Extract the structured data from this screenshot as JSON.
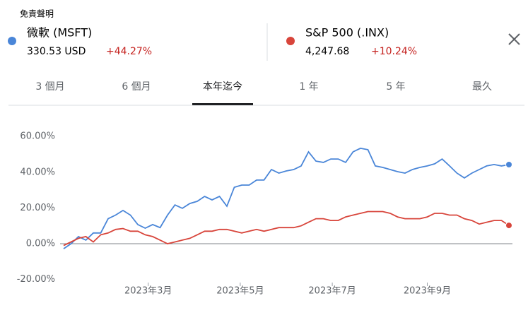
{
  "header": {
    "disclaimer": "免責聲明",
    "quotes": [
      {
        "name": "微軟 (MSFT)",
        "price": "330.53 USD",
        "change": "+44.27%"
      },
      {
        "name": "S&P 500 (.INX)",
        "price": "4,247.68",
        "change": "+10.24%"
      }
    ]
  },
  "tabs": [
    "3 個月",
    "6 個月",
    "本年迄今",
    "1 年",
    "5 年",
    "最久"
  ],
  "selected_tab": 2,
  "chart_data": {
    "type": "line",
    "series": [
      {
        "name": "微軟 (MSFT)",
        "color": "#4a86d8",
        "values": [
          -2.8,
          0,
          4,
          2,
          6,
          6,
          14,
          16,
          18.6,
          16,
          10.7,
          8.7,
          10.7,
          9,
          16,
          21.7,
          19.8,
          22.5,
          23.7,
          26.5,
          24.5,
          26.5,
          21,
          31.6,
          32.8,
          32.8,
          35.6,
          35.6,
          41.5,
          39.5,
          40.7,
          41.5,
          43.5,
          51.4,
          46.2,
          45.5,
          47.4,
          47.4,
          45.5,
          51.4,
          53.4,
          52.6,
          43.5,
          42.7,
          41.5,
          40.3,
          39.5,
          41.5,
          42.7,
          43.5,
          44.7,
          47.4,
          43.5,
          39.5,
          36.8,
          39.5,
          41.5,
          43.5,
          44.3,
          43.5,
          44.27
        ]
      },
      {
        "name": "S&P 500 (.INX)",
        "color": "#d8453b",
        "values": [
          -1,
          1,
          3,
          4,
          1,
          5,
          6,
          8,
          8.5,
          7,
          7,
          5,
          4,
          2,
          0,
          1,
          2,
          3,
          5,
          7,
          7,
          8,
          8,
          7,
          6,
          7,
          8,
          7,
          8,
          9,
          9,
          9,
          10,
          12,
          14,
          14,
          13,
          13,
          15,
          16,
          17,
          18,
          18,
          18,
          17,
          15,
          14,
          14,
          14,
          15,
          17,
          17,
          16,
          16,
          14,
          13,
          11,
          12,
          13,
          13,
          10.24
        ]
      }
    ],
    "xlim": [
      0,
      60
    ],
    "xticks": [
      {
        "value": 11.4,
        "label": "2023年3月"
      },
      {
        "value": 23.8,
        "label": "2023年5月"
      },
      {
        "value": 36.2,
        "label": "2023年7月"
      },
      {
        "value": 49,
        "label": "2023年9月"
      }
    ],
    "ylim": [
      -20,
      60
    ],
    "yticks": [
      {
        "value": -20,
        "label": "-20.00%"
      },
      {
        "value": 0,
        "label": "0.00%"
      },
      {
        "value": 20,
        "label": "20.00%"
      },
      {
        "value": 40,
        "label": "40.00%"
      },
      {
        "value": 60,
        "label": "60.00%"
      }
    ],
    "grid": false
  }
}
